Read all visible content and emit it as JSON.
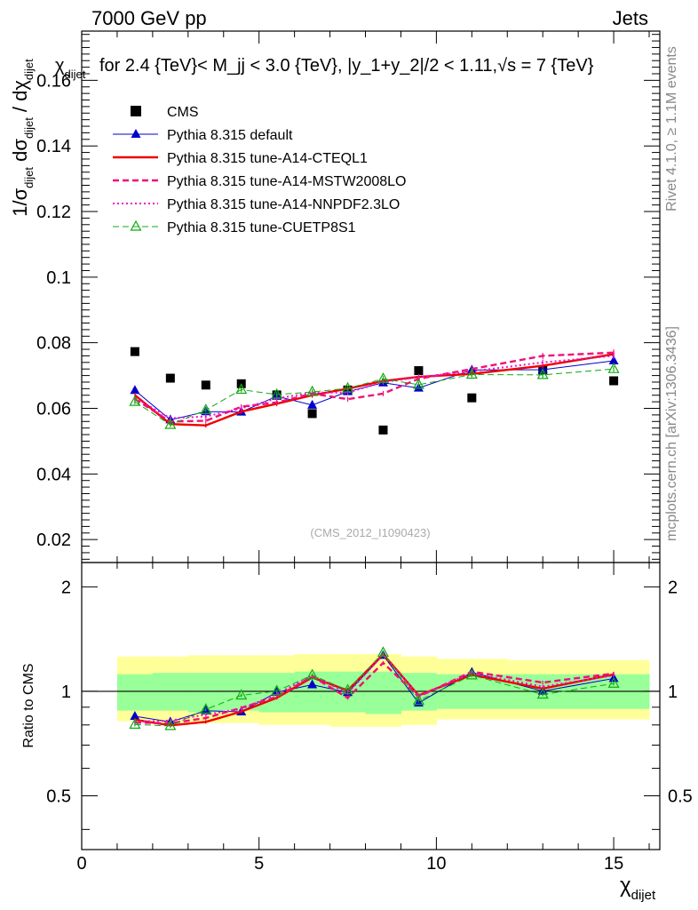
{
  "header": {
    "left": "7000 GeV pp",
    "right": "Jets",
    "title": "for 2.4 {TeV}< M_jj < 3.0 {TeV}, |y_1+y_2|/2 < 1.11,√s = 7 {TeV}",
    "watermark": "(CMS_2012_I1090423)",
    "rivet_label": "Rivet 4.1.0, ≥ 1.1M events",
    "mcplots_label": "mcplots.cern.ch [arXiv:1306.3436]"
  },
  "axes": {
    "ylabel_main": "1/σ_dijet dσ_dijet / dχ_dijet",
    "ylabel_ratio": "Ratio to CMS",
    "xlabel": "χ_dijet"
  },
  "chart_data": {
    "type": "line",
    "x": [
      1.5,
      2.5,
      3.5,
      4.5,
      5.5,
      6.5,
      7.5,
      8.5,
      9.5,
      11,
      13,
      15
    ],
    "bin_edges": [
      1,
      2,
      3,
      4,
      5,
      6,
      7,
      8,
      9,
      10,
      12,
      14,
      16
    ],
    "xlim": [
      0,
      16.3
    ],
    "main": {
      "ylim": [
        0.013,
        0.175
      ],
      "yticks": [
        0.02,
        0.04,
        0.06,
        0.08,
        0.1,
        0.12,
        0.14,
        0.16
      ],
      "ytick_labels": [
        "0.02",
        "0.04",
        "0.06",
        "0.08",
        "0.1",
        "0.12",
        "0.14",
        "0.16"
      ]
    },
    "ratio": {
      "ylim": [
        0.35,
        2.35
      ],
      "yticks": [
        0.5,
        1,
        2
      ],
      "ytick_labels": [
        "0.5",
        "1",
        "2"
      ],
      "band_green": [
        [
          0.88,
          1.12
        ],
        [
          0.88,
          1.13
        ],
        [
          0.87,
          1.13
        ],
        [
          0.88,
          1.13
        ],
        [
          0.87,
          1.13
        ],
        [
          0.87,
          1.14
        ],
        [
          0.87,
          1.14
        ],
        [
          0.86,
          1.14
        ],
        [
          0.88,
          1.13
        ],
        [
          0.89,
          1.12
        ],
        [
          0.89,
          1.12
        ],
        [
          0.89,
          1.12
        ]
      ],
      "band_yellow": [
        [
          0.82,
          1.26
        ],
        [
          0.81,
          1.26
        ],
        [
          0.81,
          1.27
        ],
        [
          0.81,
          1.27
        ],
        [
          0.8,
          1.27
        ],
        [
          0.8,
          1.28
        ],
        [
          0.79,
          1.28
        ],
        [
          0.79,
          1.28
        ],
        [
          0.8,
          1.26
        ],
        [
          0.83,
          1.24
        ],
        [
          0.83,
          1.23
        ],
        [
          0.83,
          1.23
        ]
      ]
    },
    "xticks": [
      0,
      5,
      10,
      15
    ],
    "xtick_labels": [
      "0",
      "5",
      "10",
      "15"
    ],
    "series": [
      {
        "name": "CMS",
        "color": "#000000",
        "marker": "square",
        "line": "none",
        "values": [
          0.0773,
          0.0692,
          0.0671,
          0.0675,
          0.0641,
          0.0584,
          0.0656,
          0.0534,
          0.0715,
          0.0632,
          0.0717,
          0.0684
        ]
      },
      {
        "name": "Pythia 8.315 default",
        "color": "#0000cc",
        "marker": "triangle",
        "line": "solid",
        "width": 1,
        "values": [
          0.0655,
          0.0565,
          0.059,
          0.0589,
          0.0637,
          0.061,
          0.0651,
          0.0678,
          0.0662,
          0.0717,
          0.0718,
          0.0745
        ]
      },
      {
        "name": "Pythia 8.315 tune-A14-CTEQL1",
        "color": "#ee0000",
        "marker": "none",
        "line": "solid",
        "width": 2.4,
        "values": [
          0.064,
          0.0552,
          0.0548,
          0.059,
          0.0614,
          0.064,
          0.066,
          0.0683,
          0.0696,
          0.0705,
          0.073,
          0.0765
        ]
      },
      {
        "name": "Pythia 8.315 tune-A14-MSTW2008LO",
        "color": "#ee1177",
        "marker": "none",
        "line": "dashed",
        "width": 2.4,
        "values": [
          0.0628,
          0.056,
          0.0562,
          0.0605,
          0.0618,
          0.0645,
          0.0628,
          0.0645,
          0.069,
          0.072,
          0.076,
          0.077
        ]
      },
      {
        "name": "Pythia 8.315 tune-A14-NNPDF2.3LO",
        "color": "#ee11cc",
        "marker": "none",
        "line": "dotted",
        "width": 2,
        "values": [
          0.0632,
          0.057,
          0.0575,
          0.06,
          0.063,
          0.0648,
          0.0648,
          0.068,
          0.0695,
          0.0713,
          0.074,
          0.076
        ]
      },
      {
        "name": "Pythia 8.315 tune-CUETP8S1",
        "color": "#11aa11",
        "marker": "triangle-open",
        "line": "dashed",
        "width": 1,
        "values": [
          0.062,
          0.055,
          0.0595,
          0.0657,
          0.0642,
          0.065,
          0.0661,
          0.069,
          0.0672,
          0.0703,
          0.0702,
          0.072
        ]
      }
    ]
  }
}
